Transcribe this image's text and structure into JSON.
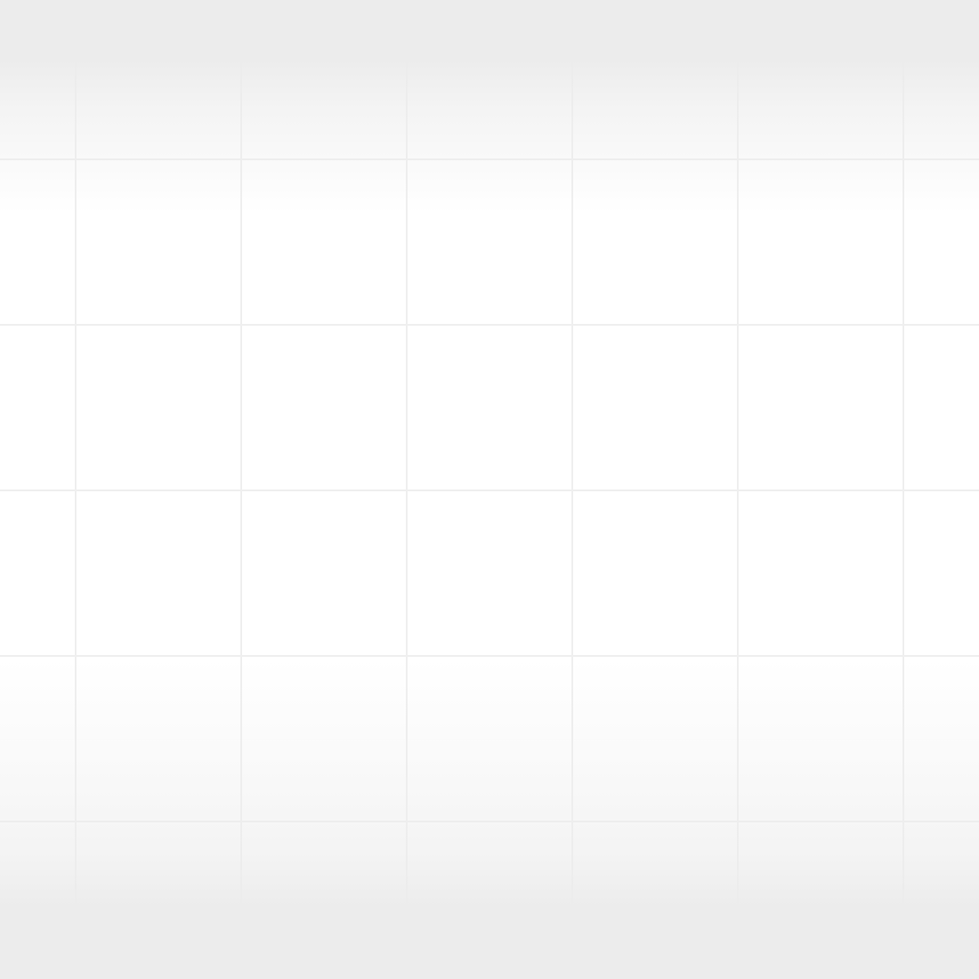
{
  "canvas": {
    "background_color": "#ececec",
    "surface_color": "#ffffff",
    "grid_line_color": "#efefef",
    "grid": true
  }
}
